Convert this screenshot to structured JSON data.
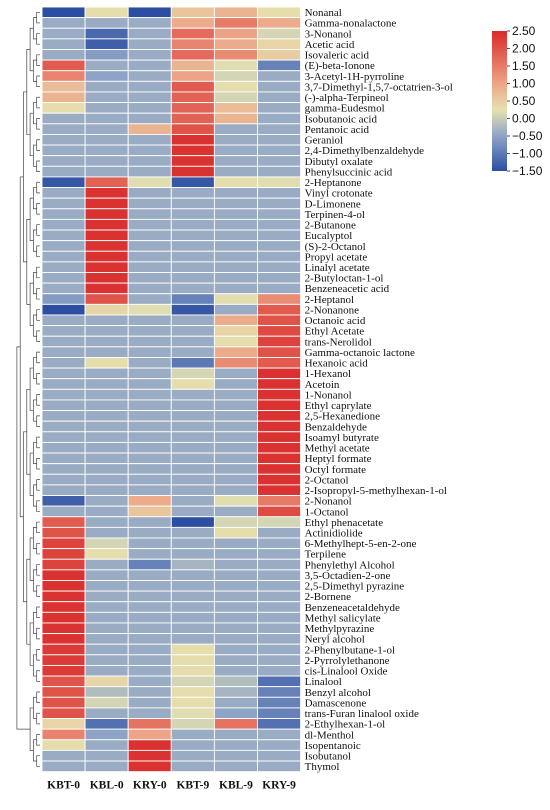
{
  "chart_data": {
    "type": "heatmap",
    "title": "",
    "xlabel": "",
    "ylabel": "",
    "columns": [
      "KBT-0",
      "KBL-0",
      "KRY-0",
      "KBT-9",
      "KBL-9",
      "KRY-9"
    ],
    "rows": [
      "Nonanal",
      "Gamma-nonalactone",
      "3-Nonanol",
      "Acetic acid",
      "Isovaleric acid",
      "(E)-beta-Ionone",
      "3-Acetyl-1H-pyrroline",
      "3,7-Dimethyl-1,5,7-octatrien-3-ol",
      "(-)-alpha-Terpineol",
      "gamma-Eudesmol",
      "Isobutanoic acid",
      "Pentanoic acid",
      "Geraniol",
      "2,4-Dimethylbenzaldehyde",
      "Dibutyl oxalate",
      "Phenylsuccinic acid",
      "2-Heptanone",
      "Vinyl crotonate",
      "D-Limonene",
      "Terpinen-4-ol",
      "2-Butanone",
      "Eucalyptol",
      "(S)-2-Octanol",
      "Propyl acetate",
      "Linalyl acetate",
      "2-Butyloctan-1-ol",
      "Benzeneacetic acid",
      "2-Heptanol",
      "2-Nonanone",
      "Octanoic acid",
      "Ethyl Acetate",
      "trans-Nerolidol",
      "Gamma-octanoic lactone",
      "Hexanoic acid",
      "1-Hexanol",
      "Acetoin",
      "1-Nonanol",
      "Ethyl caprylate",
      "2,5-Hexanedione",
      "Benzaldehyde",
      "Isoamyl butyrate",
      "Methyl acetate",
      "Heptyl formate",
      "Octyl formate",
      "2-Octanol",
      "2-Isopropyl-5-methylhexan-1-ol",
      "2-Nonanol",
      "1-Octanol",
      "Ethyl phenacetate",
      "Actinidiolide",
      "6-Methylhept-5-en-2-one",
      "Terpilene",
      "Phenylethyl Alcohol",
      "3,5-Octadien-2-one",
      "2,5-Dimethyl pyrazine",
      "2-Bornene",
      "Benzeneacetaldehyde",
      "Methyl salicylate",
      "Methylpyrazine",
      "Neryl alcohol",
      "2-Phenylbutane-1-ol",
      "2-Pyrrolylethanone",
      "cis-Linalool Oxide",
      "Linalool",
      "Benzyl alcohol",
      "Damascenone",
      "trans-Furan linalool oxide",
      "2-Ethylhexan-1-ol",
      "dl-Menthol",
      "Isopentanoic",
      "Isobutanol",
      "Thymol"
    ],
    "values": [
      [
        -1.5,
        0.3,
        -1.5,
        0.6,
        0.8,
        0.3
      ],
      [
        -0.4,
        -0.4,
        -0.4,
        0.9,
        1.5,
        0.9
      ],
      [
        -0.4,
        -1.2,
        -0.4,
        1.7,
        1.0,
        0.1
      ],
      [
        -0.4,
        -1.3,
        -0.4,
        1.4,
        0.9,
        0.4
      ],
      [
        -0.4,
        -0.6,
        -0.4,
        1.7,
        1.3,
        0.5
      ],
      [
        1.9,
        -0.4,
        -0.4,
        0.8,
        0.2,
        -0.9
      ],
      [
        1.4,
        -0.5,
        -0.4,
        1.0,
        0.1,
        -0.4
      ],
      [
        0.7,
        -0.4,
        -0.4,
        1.9,
        0.3,
        -0.4
      ],
      [
        0.8,
        -0.4,
        -0.4,
        1.8,
        0.1,
        -0.4
      ],
      [
        0.3,
        -0.4,
        -0.4,
        1.8,
        0.7,
        -0.4
      ],
      [
        -0.4,
        -0.4,
        -0.4,
        1.8,
        0.8,
        -0.4
      ],
      [
        -0.4,
        -0.4,
        0.8,
        2.0,
        -0.4,
        -0.4
      ],
      [
        -0.4,
        -0.4,
        -0.4,
        2.4,
        -0.4,
        -0.4
      ],
      [
        -0.4,
        -0.4,
        -0.4,
        2.4,
        -0.4,
        -0.4
      ],
      [
        -0.4,
        -0.4,
        -0.4,
        2.4,
        -0.4,
        -0.4
      ],
      [
        -0.4,
        -0.4,
        -0.4,
        2.4,
        -0.4,
        -0.4
      ],
      [
        -1.4,
        1.8,
        0.2,
        -1.4,
        0.3,
        0.2
      ],
      [
        -0.4,
        2.4,
        -0.4,
        -0.4,
        -0.4,
        -0.4
      ],
      [
        -0.4,
        2.4,
        -0.4,
        -0.4,
        -0.4,
        -0.4
      ],
      [
        -0.4,
        2.4,
        -0.4,
        -0.4,
        -0.4,
        -0.4
      ],
      [
        -0.4,
        2.4,
        -0.4,
        -0.4,
        -0.4,
        -0.4
      ],
      [
        -0.4,
        2.4,
        -0.4,
        -0.4,
        -0.4,
        -0.4
      ],
      [
        -0.4,
        2.4,
        -0.4,
        -0.4,
        -0.4,
        -0.4
      ],
      [
        -0.4,
        2.4,
        -0.4,
        -0.4,
        -0.4,
        -0.4
      ],
      [
        -0.4,
        2.4,
        -0.4,
        -0.4,
        -0.4,
        -0.4
      ],
      [
        -0.4,
        2.4,
        -0.4,
        -0.4,
        -0.4,
        -0.4
      ],
      [
        -0.4,
        2.4,
        -0.4,
        -0.4,
        -0.4,
        -0.4
      ],
      [
        -0.6,
        2.0,
        -0.4,
        -0.9,
        0.2,
        1.3
      ],
      [
        -1.5,
        0.4,
        0.2,
        -1.4,
        -0.4,
        1.9
      ],
      [
        -0.4,
        -0.4,
        -0.4,
        -0.4,
        0.9,
        2.0
      ],
      [
        -0.4,
        -0.4,
        -0.4,
        -0.4,
        0.4,
        2.1
      ],
      [
        -0.4,
        -0.4,
        -0.4,
        -0.4,
        0.3,
        2.2
      ],
      [
        -0.4,
        -0.4,
        -0.4,
        -0.4,
        0.9,
        2.0
      ],
      [
        -0.4,
        0.3,
        -0.4,
        -1.0,
        1.3,
        1.9
      ],
      [
        -0.4,
        -0.4,
        -0.4,
        0.1,
        -0.4,
        2.4
      ],
      [
        -0.4,
        -0.4,
        -0.4,
        0.3,
        -0.4,
        2.4
      ],
      [
        -0.4,
        -0.4,
        -0.4,
        -0.4,
        -0.4,
        2.4
      ],
      [
        -0.4,
        -0.4,
        -0.4,
        -0.4,
        -0.4,
        2.4
      ],
      [
        -0.4,
        -0.4,
        -0.4,
        -0.4,
        -0.4,
        2.4
      ],
      [
        -0.4,
        -0.4,
        -0.4,
        -0.4,
        -0.4,
        2.4
      ],
      [
        -0.4,
        -0.4,
        -0.4,
        -0.4,
        -0.4,
        2.4
      ],
      [
        -0.4,
        -0.4,
        -0.4,
        -0.4,
        -0.4,
        2.4
      ],
      [
        -0.4,
        -0.4,
        -0.4,
        -0.4,
        -0.4,
        2.4
      ],
      [
        -0.4,
        -0.4,
        -0.4,
        -0.4,
        -0.4,
        2.4
      ],
      [
        -0.4,
        -0.4,
        -0.4,
        -0.4,
        -0.4,
        2.4
      ],
      [
        -0.4,
        -0.4,
        -0.4,
        -0.4,
        -0.4,
        2.4
      ],
      [
        -1.3,
        -0.4,
        0.9,
        -0.4,
        0.2,
        1.5
      ],
      [
        -0.4,
        -0.4,
        0.6,
        -0.4,
        -0.4,
        2.1
      ],
      [
        1.9,
        -0.4,
        -0.4,
        -1.5,
        0.1,
        0.1
      ],
      [
        2.0,
        -0.4,
        -0.4,
        -0.4,
        0.3,
        -0.4
      ],
      [
        2.2,
        0.1,
        -0.4,
        -0.4,
        -0.4,
        -0.4
      ],
      [
        2.2,
        0.3,
        -0.4,
        -0.4,
        -0.4,
        -0.4
      ],
      [
        2.2,
        -0.4,
        -0.9,
        -0.3,
        -0.4,
        -0.4
      ],
      [
        2.4,
        -0.4,
        -0.4,
        -0.4,
        -0.4,
        -0.4
      ],
      [
        2.4,
        -0.4,
        -0.4,
        -0.4,
        -0.4,
        -0.4
      ],
      [
        2.4,
        -0.4,
        -0.4,
        -0.4,
        -0.4,
        -0.4
      ],
      [
        2.4,
        -0.4,
        -0.4,
        -0.4,
        -0.4,
        -0.4
      ],
      [
        2.4,
        -0.4,
        -0.4,
        -0.4,
        -0.4,
        -0.4
      ],
      [
        2.4,
        -0.4,
        -0.4,
        -0.4,
        -0.4,
        -0.4
      ],
      [
        2.4,
        -0.4,
        -0.4,
        -0.4,
        -0.4,
        -0.4
      ],
      [
        2.3,
        -0.4,
        -0.4,
        0.3,
        -0.4,
        -0.4
      ],
      [
        2.3,
        -0.4,
        -0.4,
        0.3,
        -0.4,
        -0.4
      ],
      [
        2.3,
        -0.4,
        -0.4,
        0.3,
        -0.4,
        -0.4
      ],
      [
        2.0,
        0.4,
        -0.4,
        0.1,
        -0.2,
        -1.1
      ],
      [
        2.0,
        -0.2,
        -0.4,
        0.3,
        -0.3,
        -0.9
      ],
      [
        2.0,
        0.1,
        -0.4,
        0.3,
        -0.4,
        -0.9
      ],
      [
        2.0,
        -0.4,
        -0.4,
        0.2,
        -0.5,
        -0.9
      ],
      [
        0.4,
        -1.1,
        1.6,
        0.1,
        1.6,
        -1.1
      ],
      [
        1.4,
        -0.5,
        1.0,
        -0.4,
        -0.4,
        -0.4
      ],
      [
        0.3,
        -0.4,
        2.4,
        -0.4,
        -0.4,
        -0.4
      ],
      [
        -0.4,
        -0.4,
        2.4,
        -0.4,
        -0.4,
        -0.4
      ],
      [
        -0.4,
        -0.4,
        2.4,
        -0.4,
        -0.4,
        -0.4
      ]
    ],
    "color_scale": {
      "min": -1.5,
      "max": 2.5,
      "stops": [
        {
          "value": -1.5,
          "color": "#2b4ea2"
        },
        {
          "value": -0.5,
          "color": "#8ea4c6"
        },
        {
          "value": 0.25,
          "color": "#e6e1b0"
        },
        {
          "value": 1.0,
          "color": "#eda486"
        },
        {
          "value": 2.5,
          "color": "#d92a2a"
        }
      ],
      "ticks": [
        "2.50",
        "2.00",
        "1.50",
        "1.00",
        "0.50",
        "0.00",
        "−0.50",
        "−1.00",
        "−1.50"
      ]
    },
    "dendrogram": "left",
    "legend_position": "top-right",
    "grid": true
  }
}
